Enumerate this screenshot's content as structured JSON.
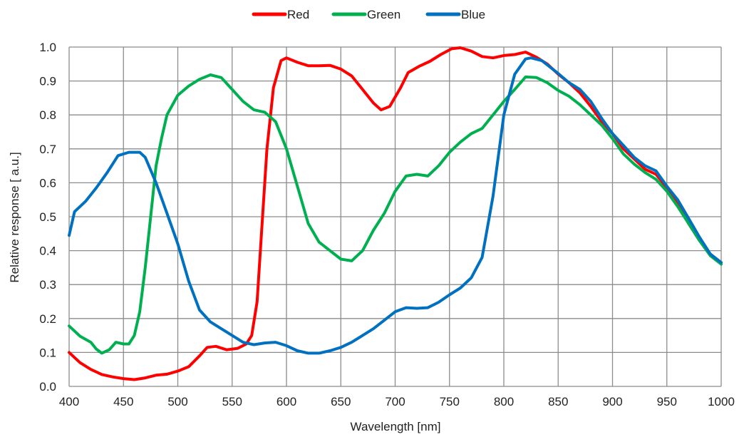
{
  "chart_data": {
    "type": "line",
    "title": "",
    "xlabel": "Wavelength [nm]",
    "ylabel": "Relative response [ a.u.]",
    "xlim": [
      400,
      1000
    ],
    "ylim": [
      0,
      1.0
    ],
    "x_ticks": [
      "400",
      "450",
      "500",
      "550",
      "600",
      "650",
      "700",
      "750",
      "800",
      "850",
      "900",
      "950",
      "1000"
    ],
    "y_ticks": [
      "0.0",
      "0.1",
      "0.2",
      "0.3",
      "0.4",
      "0.5",
      "0.6",
      "0.7",
      "0.8",
      "0.9",
      "1.0"
    ],
    "grid": true,
    "legend_position": "top-center",
    "series": [
      {
        "name": "Red",
        "color": "#ff0000",
        "points": [
          [
            400,
            0.1
          ],
          [
            410,
            0.07
          ],
          [
            420,
            0.05
          ],
          [
            430,
            0.035
          ],
          [
            440,
            0.028
          ],
          [
            450,
            0.023
          ],
          [
            460,
            0.02
          ],
          [
            470,
            0.025
          ],
          [
            480,
            0.033
          ],
          [
            490,
            0.036
          ],
          [
            500,
            0.045
          ],
          [
            510,
            0.058
          ],
          [
            520,
            0.09
          ],
          [
            527,
            0.115
          ],
          [
            535,
            0.118
          ],
          [
            545,
            0.108
          ],
          [
            555,
            0.112
          ],
          [
            563,
            0.125
          ],
          [
            568,
            0.15
          ],
          [
            573,
            0.25
          ],
          [
            577,
            0.45
          ],
          [
            582,
            0.7
          ],
          [
            588,
            0.88
          ],
          [
            595,
            0.96
          ],
          [
            600,
            0.968
          ],
          [
            610,
            0.955
          ],
          [
            620,
            0.945
          ],
          [
            630,
            0.945
          ],
          [
            640,
            0.946
          ],
          [
            650,
            0.935
          ],
          [
            660,
            0.915
          ],
          [
            670,
            0.875
          ],
          [
            680,
            0.835
          ],
          [
            687,
            0.815
          ],
          [
            695,
            0.825
          ],
          [
            705,
            0.88
          ],
          [
            712,
            0.925
          ],
          [
            722,
            0.943
          ],
          [
            732,
            0.958
          ],
          [
            742,
            0.978
          ],
          [
            752,
            0.995
          ],
          [
            760,
            0.998
          ],
          [
            770,
            0.988
          ],
          [
            780,
            0.972
          ],
          [
            790,
            0.968
          ],
          [
            800,
            0.975
          ],
          [
            810,
            0.978
          ],
          [
            820,
            0.985
          ],
          [
            830,
            0.97
          ],
          [
            840,
            0.95
          ],
          [
            850,
            0.92
          ],
          [
            860,
            0.895
          ],
          [
            870,
            0.865
          ],
          [
            880,
            0.825
          ],
          [
            890,
            0.78
          ],
          [
            900,
            0.745
          ],
          [
            910,
            0.7
          ],
          [
            920,
            0.67
          ],
          [
            930,
            0.64
          ],
          [
            940,
            0.625
          ],
          [
            950,
            0.585
          ],
          [
            960,
            0.535
          ],
          [
            970,
            0.48
          ],
          [
            980,
            0.43
          ],
          [
            990,
            0.39
          ],
          [
            1000,
            0.365
          ]
        ]
      },
      {
        "name": "Green",
        "color": "#00b050",
        "points": [
          [
            400,
            0.178
          ],
          [
            410,
            0.148
          ],
          [
            420,
            0.13
          ],
          [
            425,
            0.11
          ],
          [
            430,
            0.098
          ],
          [
            437,
            0.108
          ],
          [
            443,
            0.13
          ],
          [
            450,
            0.125
          ],
          [
            455,
            0.125
          ],
          [
            460,
            0.15
          ],
          [
            465,
            0.22
          ],
          [
            470,
            0.35
          ],
          [
            475,
            0.5
          ],
          [
            480,
            0.65
          ],
          [
            485,
            0.73
          ],
          [
            490,
            0.8
          ],
          [
            500,
            0.858
          ],
          [
            510,
            0.885
          ],
          [
            520,
            0.905
          ],
          [
            530,
            0.918
          ],
          [
            540,
            0.91
          ],
          [
            550,
            0.875
          ],
          [
            560,
            0.84
          ],
          [
            570,
            0.815
          ],
          [
            580,
            0.808
          ],
          [
            590,
            0.78
          ],
          [
            600,
            0.7
          ],
          [
            610,
            0.59
          ],
          [
            620,
            0.48
          ],
          [
            630,
            0.425
          ],
          [
            640,
            0.4
          ],
          [
            650,
            0.375
          ],
          [
            660,
            0.37
          ],
          [
            670,
            0.4
          ],
          [
            680,
            0.46
          ],
          [
            690,
            0.51
          ],
          [
            700,
            0.575
          ],
          [
            710,
            0.62
          ],
          [
            720,
            0.625
          ],
          [
            730,
            0.62
          ],
          [
            740,
            0.65
          ],
          [
            750,
            0.69
          ],
          [
            760,
            0.72
          ],
          [
            770,
            0.745
          ],
          [
            780,
            0.76
          ],
          [
            790,
            0.8
          ],
          [
            800,
            0.84
          ],
          [
            810,
            0.875
          ],
          [
            820,
            0.912
          ],
          [
            830,
            0.91
          ],
          [
            840,
            0.895
          ],
          [
            850,
            0.872
          ],
          [
            860,
            0.855
          ],
          [
            870,
            0.83
          ],
          [
            880,
            0.8
          ],
          [
            890,
            0.77
          ],
          [
            900,
            0.73
          ],
          [
            910,
            0.685
          ],
          [
            920,
            0.655
          ],
          [
            930,
            0.63
          ],
          [
            940,
            0.61
          ],
          [
            950,
            0.575
          ],
          [
            960,
            0.53
          ],
          [
            970,
            0.48
          ],
          [
            980,
            0.43
          ],
          [
            990,
            0.385
          ],
          [
            1000,
            0.36
          ]
        ]
      },
      {
        "name": "Blue",
        "color": "#0070c0",
        "points": [
          [
            400,
            0.445
          ],
          [
            405,
            0.515
          ],
          [
            415,
            0.545
          ],
          [
            425,
            0.585
          ],
          [
            435,
            0.63
          ],
          [
            445,
            0.68
          ],
          [
            455,
            0.69
          ],
          [
            465,
            0.69
          ],
          [
            470,
            0.675
          ],
          [
            480,
            0.6
          ],
          [
            490,
            0.51
          ],
          [
            500,
            0.42
          ],
          [
            510,
            0.31
          ],
          [
            520,
            0.225
          ],
          [
            530,
            0.19
          ],
          [
            540,
            0.17
          ],
          [
            550,
            0.15
          ],
          [
            560,
            0.13
          ],
          [
            570,
            0.123
          ],
          [
            580,
            0.128
          ],
          [
            590,
            0.13
          ],
          [
            600,
            0.12
          ],
          [
            610,
            0.105
          ],
          [
            620,
            0.098
          ],
          [
            630,
            0.098
          ],
          [
            640,
            0.105
          ],
          [
            650,
            0.115
          ],
          [
            660,
            0.13
          ],
          [
            670,
            0.15
          ],
          [
            680,
            0.17
          ],
          [
            690,
            0.195
          ],
          [
            700,
            0.22
          ],
          [
            710,
            0.232
          ],
          [
            720,
            0.23
          ],
          [
            730,
            0.232
          ],
          [
            740,
            0.248
          ],
          [
            750,
            0.27
          ],
          [
            760,
            0.29
          ],
          [
            770,
            0.32
          ],
          [
            780,
            0.38
          ],
          [
            790,
            0.56
          ],
          [
            800,
            0.8
          ],
          [
            810,
            0.92
          ],
          [
            820,
            0.965
          ],
          [
            825,
            0.968
          ],
          [
            835,
            0.96
          ],
          [
            850,
            0.922
          ],
          [
            860,
            0.895
          ],
          [
            870,
            0.875
          ],
          [
            880,
            0.84
          ],
          [
            890,
            0.79
          ],
          [
            900,
            0.745
          ],
          [
            910,
            0.71
          ],
          [
            920,
            0.675
          ],
          [
            930,
            0.65
          ],
          [
            940,
            0.635
          ],
          [
            950,
            0.59
          ],
          [
            960,
            0.55
          ],
          [
            970,
            0.495
          ],
          [
            980,
            0.44
          ],
          [
            990,
            0.39
          ],
          [
            1000,
            0.365
          ]
        ]
      }
    ]
  }
}
